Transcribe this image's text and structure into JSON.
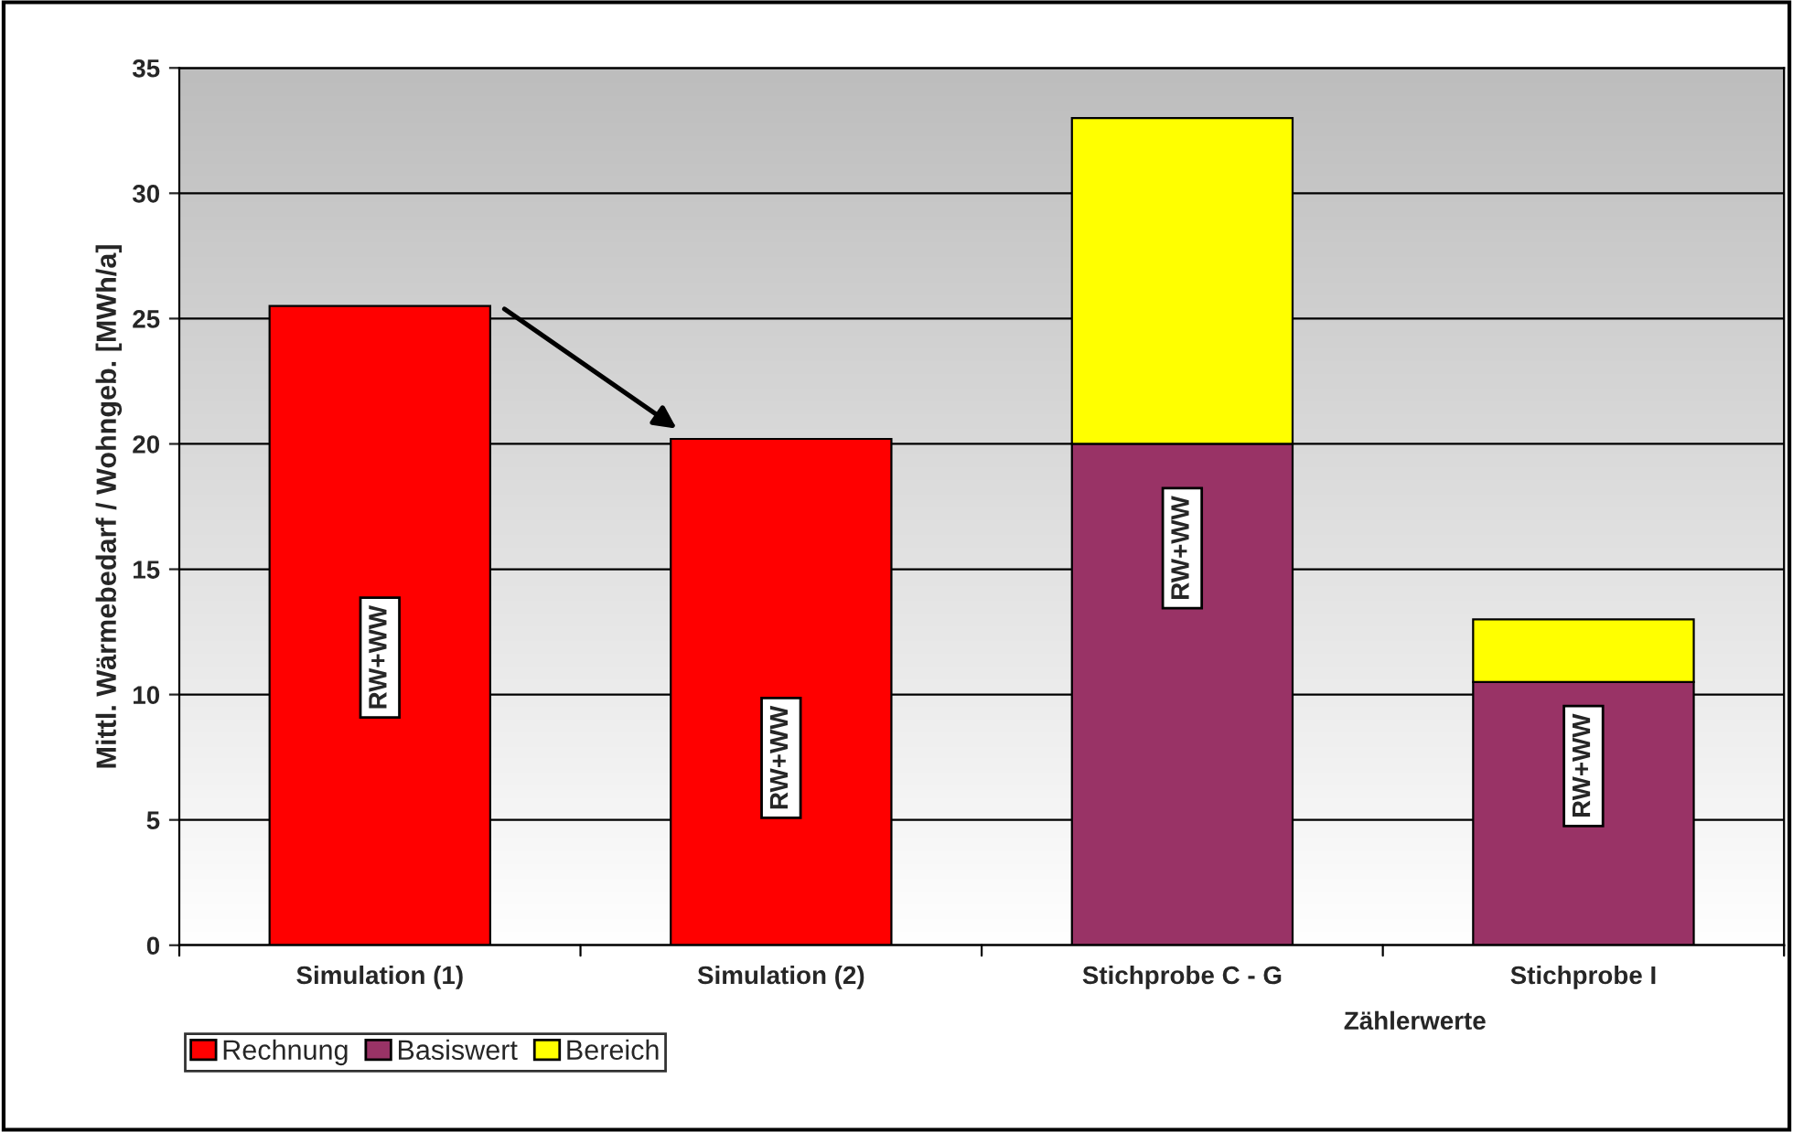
{
  "chart_data": {
    "type": "bar",
    "stacked": true,
    "xlabel": "Zählerwerte",
    "ylabel": "Mittl. Wärmebedarf / Wohngeb. [MWh/a]",
    "categories": [
      "Simulation (1)",
      "Simulation (2)",
      "Stichprobe C - G",
      "Stichprobe I"
    ],
    "series": [
      {
        "name": "Rechnung",
        "color": "#ff0000",
        "values": [
          25.5,
          20.2,
          null,
          null
        ]
      },
      {
        "name": "Basiswert",
        "color": "#993366",
        "values": [
          null,
          null,
          20,
          10.5
        ]
      },
      {
        "name": "Bereich",
        "color": "#ffff00",
        "values": [
          null,
          null,
          13,
          2.5
        ]
      }
    ],
    "ylim": [
      0,
      35
    ],
    "yticks": [
      0,
      5,
      10,
      15,
      20,
      25,
      30,
      35
    ],
    "grid": "y",
    "legend": "bottom left",
    "annotations": [
      "RW+WW",
      "RW+WW",
      "RW+WW",
      "RW+WW"
    ]
  }
}
